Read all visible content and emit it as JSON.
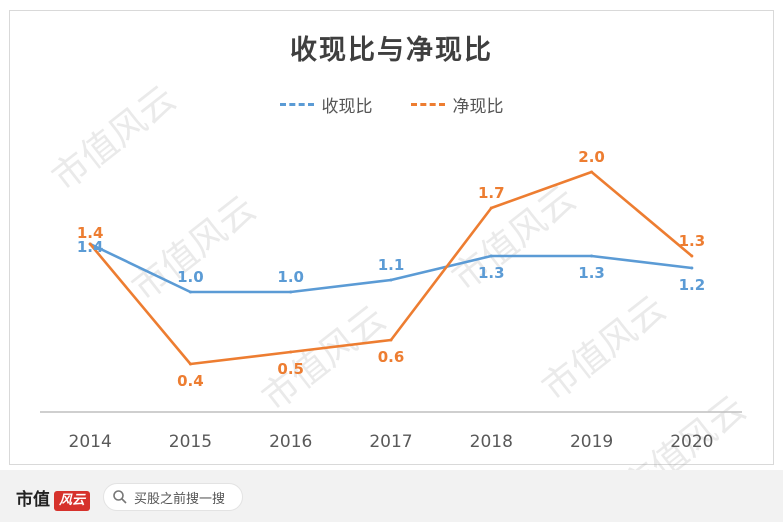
{
  "chart_data": {
    "type": "line",
    "title": "收现比与净现比",
    "categories": [
      "2014",
      "2015",
      "2016",
      "2017",
      "2018",
      "2019",
      "2020"
    ],
    "series": [
      {
        "name": "收现比",
        "values": [
          1.4,
          1.0,
          1.0,
          1.1,
          1.3,
          1.3,
          1.2
        ],
        "color": "#5b9bd5"
      },
      {
        "name": "净现比",
        "values": [
          1.4,
          0.4,
          0.5,
          0.6,
          1.7,
          2.0,
          1.3
        ],
        "color": "#ed7d31"
      }
    ],
    "ylim": [
      -0.5,
      2.2
    ],
    "grid": false,
    "legend": "top-center"
  },
  "watermark": "市值风云",
  "footer": {
    "brand_text": "市值",
    "brand_mark": "风云",
    "search_text": "买股之前搜一搜",
    "search_icon": "search-icon"
  }
}
